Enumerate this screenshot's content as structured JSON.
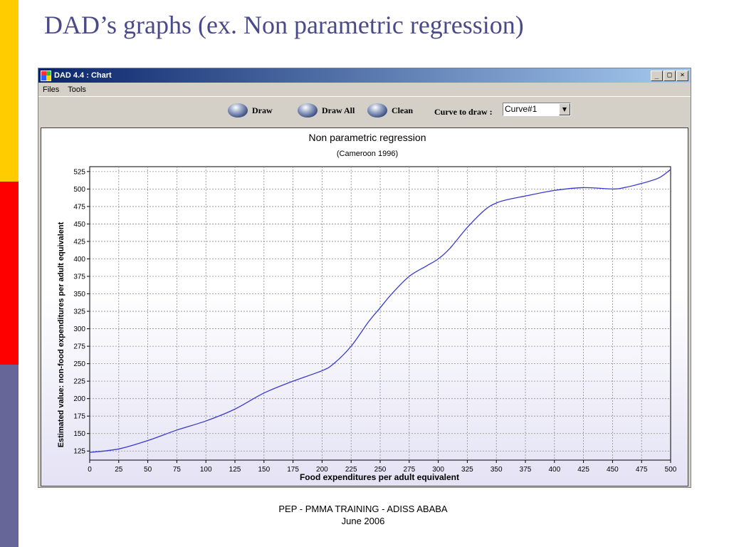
{
  "slide": {
    "title": "DAD’s graphs  (ex. Non parametric regression)",
    "footer_line1": "PEP - PMMA TRAINING - ADISS ABABA",
    "footer_line2": "June 2006"
  },
  "window": {
    "title": "DAD 4.4 : Chart",
    "controls": {
      "minimize": "_",
      "maximize": "□",
      "close": "×"
    }
  },
  "menu": {
    "items": [
      "Files",
      "Tools"
    ]
  },
  "toolbar": {
    "draw_label": "Draw",
    "draw_all_label": "Draw All",
    "clean_label": "Clean",
    "curve_label": "Curve to draw :",
    "curve_value": "Curve#1"
  },
  "colors": {
    "line": "#3a3ad0",
    "titlebar": "#0a246a",
    "grid": "#8c8c8c"
  },
  "chart_data": {
    "type": "line",
    "title": "Non parametric regression",
    "subtitle": "(Cameroon 1996)",
    "xlabel": "Food expenditures per adult equivalent",
    "ylabel": "Estimated value: non-food expenditures per adult equivalent",
    "xlim": [
      0,
      500
    ],
    "ylim": [
      112,
      532
    ],
    "xticks": [
      0,
      25,
      50,
      75,
      100,
      125,
      150,
      175,
      200,
      225,
      250,
      275,
      300,
      325,
      350,
      375,
      400,
      425,
      450,
      475,
      500
    ],
    "yticks": [
      125,
      150,
      175,
      200,
      225,
      250,
      275,
      300,
      325,
      350,
      375,
      400,
      425,
      450,
      475,
      500,
      525
    ],
    "grid": true,
    "series": [
      {
        "x": [
          0,
          25,
          50,
          75,
          100,
          125,
          150,
          175,
          200,
          210,
          225,
          240,
          250,
          260,
          275,
          290,
          300,
          310,
          325,
          340,
          350,
          360,
          375,
          400,
          425,
          450,
          460,
          475,
          490,
          500
        ],
        "y": [
          123,
          128,
          140,
          155,
          168,
          185,
          208,
          225,
          240,
          250,
          275,
          310,
          330,
          350,
          375,
          390,
          400,
          415,
          445,
          470,
          480,
          485,
          490,
          498,
          502,
          500,
          502,
          508,
          516,
          528
        ]
      }
    ]
  }
}
